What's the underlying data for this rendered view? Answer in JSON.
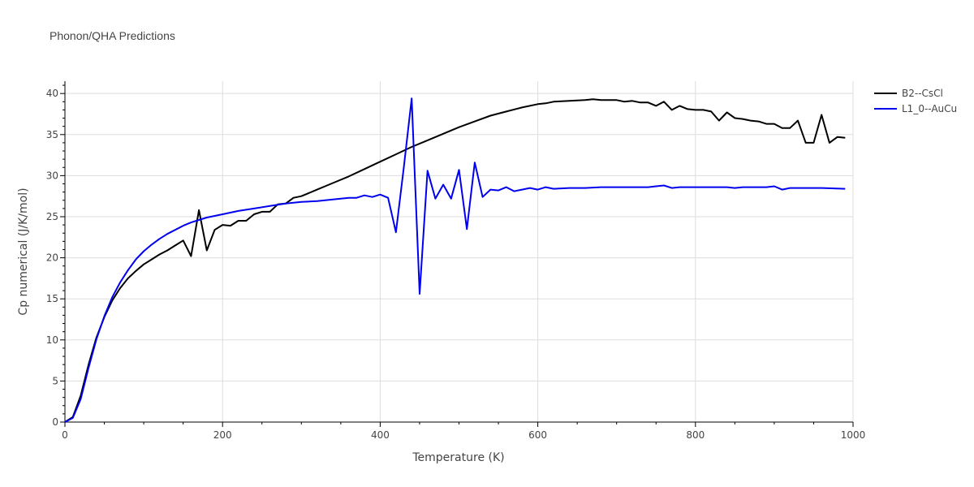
{
  "chart_data": {
    "type": "line",
    "title": "Phonon/QHA Predictions",
    "xlabel": "Temperature (K)",
    "ylabel": "Cp numerical (J/K/mol)",
    "xlim": [
      0,
      1000
    ],
    "ylim": [
      0,
      41.5
    ],
    "x_ticks": [
      0,
      200,
      400,
      600,
      800,
      1000
    ],
    "y_ticks": [
      0,
      5,
      10,
      15,
      20,
      25,
      30,
      35,
      40
    ],
    "grid": true,
    "legend_position": "top-right",
    "series": [
      {
        "name": "B2--CsCl",
        "color": "#000000",
        "points": [
          [
            0,
            0
          ],
          [
            10,
            0.6
          ],
          [
            20,
            3.2
          ],
          [
            30,
            7.0
          ],
          [
            40,
            10.3
          ],
          [
            50,
            12.8
          ],
          [
            60,
            14.8
          ],
          [
            70,
            16.3
          ],
          [
            80,
            17.5
          ],
          [
            90,
            18.4
          ],
          [
            100,
            19.2
          ],
          [
            110,
            19.8
          ],
          [
            120,
            20.4
          ],
          [
            130,
            20.9
          ],
          [
            140,
            21.5
          ],
          [
            150,
            22.1
          ],
          [
            160,
            20.2
          ],
          [
            170,
            25.8
          ],
          [
            180,
            20.9
          ],
          [
            190,
            23.4
          ],
          [
            200,
            24.0
          ],
          [
            210,
            23.9
          ],
          [
            220,
            24.5
          ],
          [
            230,
            24.5
          ],
          [
            240,
            25.3
          ],
          [
            250,
            25.6
          ],
          [
            260,
            25.6
          ],
          [
            270,
            26.5
          ],
          [
            280,
            26.6
          ],
          [
            290,
            27.3
          ],
          [
            300,
            27.5
          ],
          [
            320,
            28.3
          ],
          [
            340,
            29.1
          ],
          [
            360,
            29.9
          ],
          [
            380,
            30.8
          ],
          [
            400,
            31.7
          ],
          [
            420,
            32.6
          ],
          [
            440,
            33.5
          ],
          [
            460,
            34.3
          ],
          [
            480,
            35.1
          ],
          [
            500,
            35.9
          ],
          [
            520,
            36.6
          ],
          [
            540,
            37.3
          ],
          [
            560,
            37.8
          ],
          [
            580,
            38.3
          ],
          [
            600,
            38.7
          ],
          [
            610,
            38.8
          ],
          [
            620,
            39.0
          ],
          [
            640,
            39.1
          ],
          [
            660,
            39.2
          ],
          [
            670,
            39.3
          ],
          [
            680,
            39.2
          ],
          [
            700,
            39.2
          ],
          [
            710,
            39.0
          ],
          [
            720,
            39.1
          ],
          [
            730,
            38.9
          ],
          [
            740,
            38.9
          ],
          [
            750,
            38.5
          ],
          [
            760,
            39.0
          ],
          [
            770,
            38.0
          ],
          [
            780,
            38.5
          ],
          [
            790,
            38.1
          ],
          [
            800,
            38.0
          ],
          [
            810,
            38.0
          ],
          [
            820,
            37.8
          ],
          [
            830,
            36.7
          ],
          [
            840,
            37.7
          ],
          [
            850,
            37.0
          ],
          [
            860,
            36.9
          ],
          [
            870,
            36.7
          ],
          [
            880,
            36.6
          ],
          [
            890,
            36.3
          ],
          [
            900,
            36.3
          ],
          [
            910,
            35.8
          ],
          [
            920,
            35.8
          ],
          [
            930,
            36.7
          ],
          [
            940,
            34.0
          ],
          [
            950,
            34.0
          ],
          [
            960,
            37.4
          ],
          [
            970,
            34.0
          ],
          [
            980,
            34.7
          ],
          [
            990,
            34.6
          ]
        ]
      },
      {
        "name": "L1_0--AuCu",
        "color": "#0000ee",
        "points": [
          [
            0,
            0
          ],
          [
            10,
            0.5
          ],
          [
            20,
            2.8
          ],
          [
            30,
            6.6
          ],
          [
            40,
            10.1
          ],
          [
            50,
            12.9
          ],
          [
            60,
            15.2
          ],
          [
            70,
            17.0
          ],
          [
            80,
            18.5
          ],
          [
            90,
            19.8
          ],
          [
            100,
            20.8
          ],
          [
            110,
            21.6
          ],
          [
            120,
            22.3
          ],
          [
            130,
            22.9
          ],
          [
            140,
            23.4
          ],
          [
            150,
            23.9
          ],
          [
            160,
            24.3
          ],
          [
            170,
            24.6
          ],
          [
            180,
            24.9
          ],
          [
            190,
            25.1
          ],
          [
            200,
            25.3
          ],
          [
            220,
            25.7
          ],
          [
            240,
            26.0
          ],
          [
            260,
            26.3
          ],
          [
            280,
            26.6
          ],
          [
            300,
            26.8
          ],
          [
            320,
            26.9
          ],
          [
            340,
            27.1
          ],
          [
            360,
            27.3
          ],
          [
            370,
            27.3
          ],
          [
            380,
            27.6
          ],
          [
            390,
            27.4
          ],
          [
            400,
            27.7
          ],
          [
            410,
            27.3
          ],
          [
            420,
            23.1
          ],
          [
            430,
            31.0
          ],
          [
            440,
            39.4
          ],
          [
            450,
            15.6
          ],
          [
            460,
            30.6
          ],
          [
            470,
            27.2
          ],
          [
            480,
            28.9
          ],
          [
            490,
            27.2
          ],
          [
            500,
            30.7
          ],
          [
            510,
            23.5
          ],
          [
            520,
            31.6
          ],
          [
            530,
            27.4
          ],
          [
            540,
            28.3
          ],
          [
            550,
            28.2
          ],
          [
            560,
            28.6
          ],
          [
            570,
            28.1
          ],
          [
            580,
            28.3
          ],
          [
            590,
            28.5
          ],
          [
            600,
            28.3
          ],
          [
            610,
            28.6
          ],
          [
            620,
            28.4
          ],
          [
            640,
            28.5
          ],
          [
            660,
            28.5
          ],
          [
            680,
            28.6
          ],
          [
            700,
            28.6
          ],
          [
            720,
            28.6
          ],
          [
            740,
            28.6
          ],
          [
            750,
            28.7
          ],
          [
            760,
            28.8
          ],
          [
            770,
            28.5
          ],
          [
            780,
            28.6
          ],
          [
            800,
            28.6
          ],
          [
            840,
            28.6
          ],
          [
            850,
            28.5
          ],
          [
            860,
            28.6
          ],
          [
            890,
            28.6
          ],
          [
            900,
            28.7
          ],
          [
            910,
            28.3
          ],
          [
            920,
            28.5
          ],
          [
            960,
            28.5
          ],
          [
            990,
            28.4
          ]
        ]
      }
    ]
  }
}
